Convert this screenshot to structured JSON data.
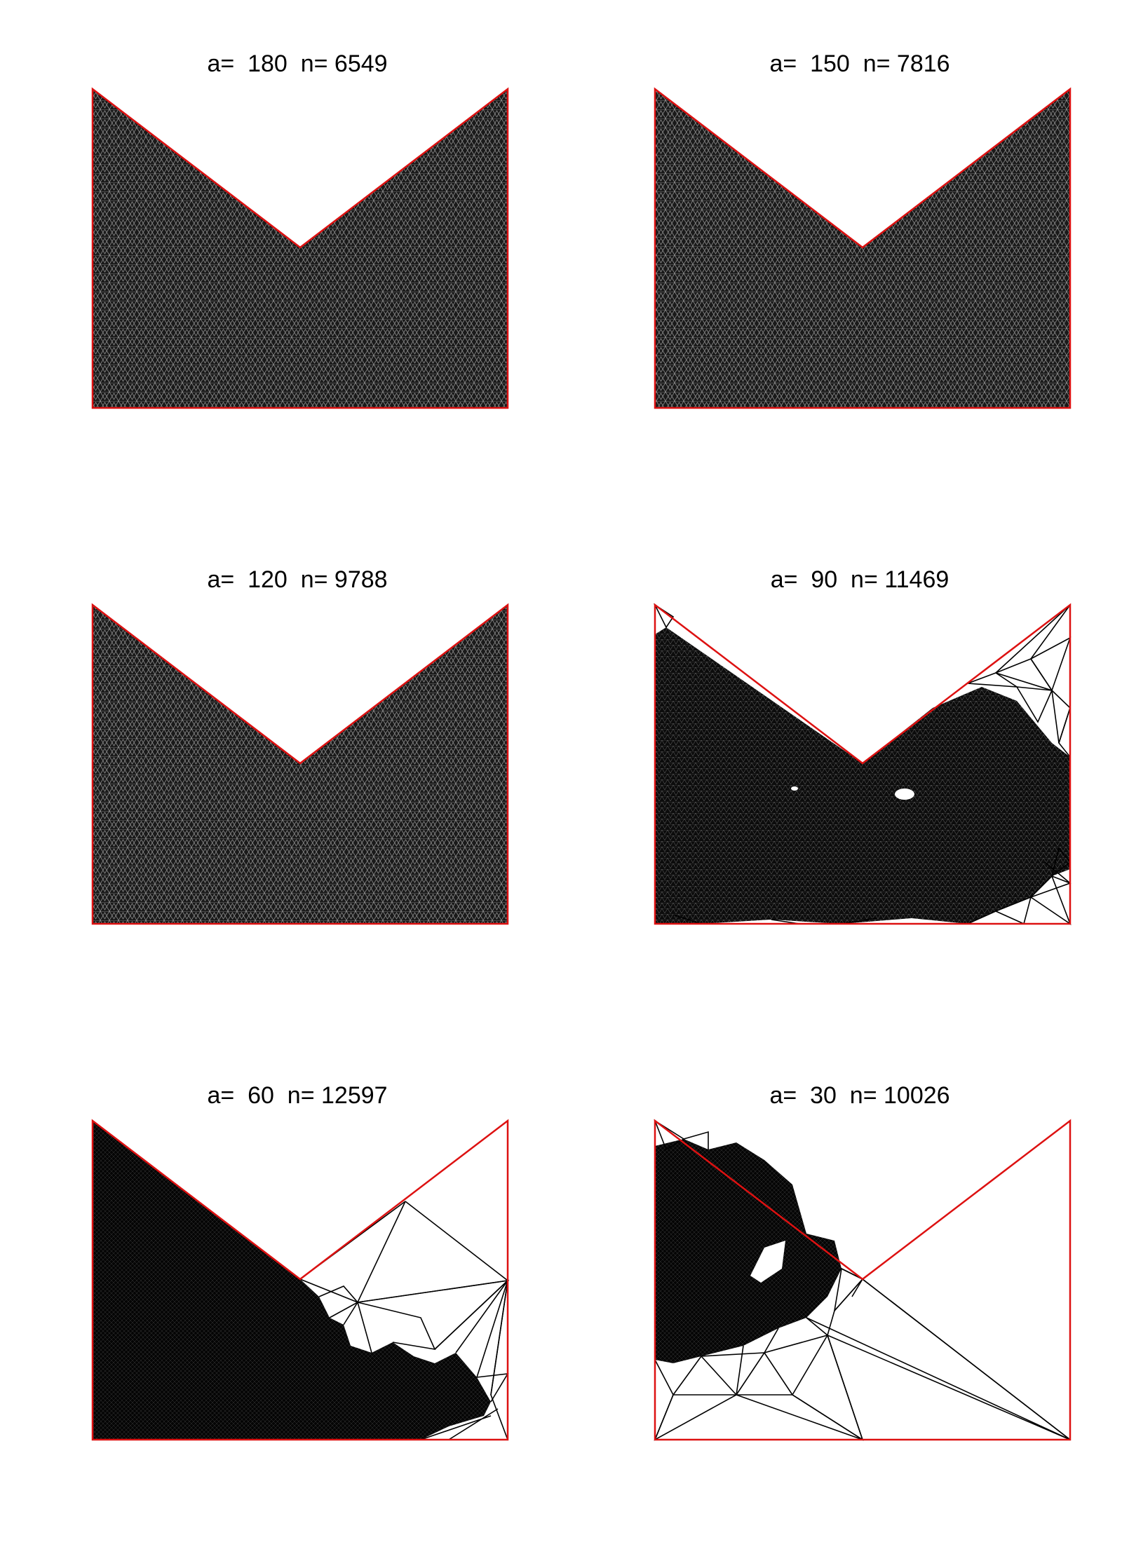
{
  "figure": {
    "colors": {
      "boundary": "#dd1111",
      "mesh": "#000000",
      "background": "#ffffff"
    },
    "panels": [
      {
        "title": "a=  180  n= 6549",
        "a": 180,
        "n": 6549,
        "coverage": "full"
      },
      {
        "title": "a=  150  n= 7816",
        "a": 150,
        "n": 7816,
        "coverage": "full"
      },
      {
        "title": "a=  120  n= 9788",
        "a": 120,
        "n": 9788,
        "coverage": "full"
      },
      {
        "title": "a=  90  n= 11469",
        "a": 90,
        "n": 11469,
        "coverage": "mostly-filled"
      },
      {
        "title": "a=  60  n= 12597",
        "a": 60,
        "n": 12597,
        "coverage": "left-half"
      },
      {
        "title": "a=  30  n= 10026",
        "a": 30,
        "n": 10026,
        "coverage": "upper-left"
      }
    ]
  }
}
